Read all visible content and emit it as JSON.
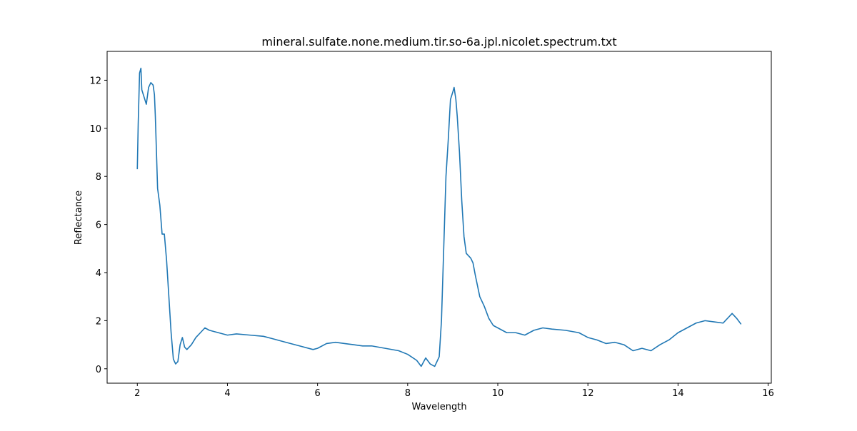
{
  "chart_data": {
    "type": "line",
    "title": "mineral.sulfate.none.medium.tir.so-6a.jpl.nicolet.spectrum.txt",
    "x_label": "Wavelength",
    "y_label": "Reflectance",
    "x": [
      2.0,
      2.02,
      2.05,
      2.08,
      2.1,
      2.15,
      2.2,
      2.25,
      2.3,
      2.35,
      2.38,
      2.4,
      2.45,
      2.5,
      2.55,
      2.6,
      2.65,
      2.7,
      2.75,
      2.8,
      2.85,
      2.9,
      2.95,
      3.0,
      3.05,
      3.1,
      3.2,
      3.3,
      3.4,
      3.5,
      3.6,
      3.8,
      4.0,
      4.2,
      4.5,
      4.8,
      5.0,
      5.3,
      5.6,
      5.9,
      6.0,
      6.2,
      6.4,
      6.6,
      6.8,
      7.0,
      7.2,
      7.5,
      7.8,
      8.0,
      8.2,
      8.3,
      8.4,
      8.5,
      8.6,
      8.7,
      8.75,
      8.8,
      8.85,
      8.9,
      8.95,
      9.0,
      9.03,
      9.07,
      9.1,
      9.15,
      9.2,
      9.25,
      9.3,
      9.4,
      9.45,
      9.5,
      9.6,
      9.7,
      9.8,
      9.9,
      10.0,
      10.2,
      10.4,
      10.6,
      10.8,
      11.0,
      11.2,
      11.5,
      11.8,
      12.0,
      12.2,
      12.4,
      12.6,
      12.8,
      13.0,
      13.2,
      13.4,
      13.6,
      13.8,
      14.0,
      14.2,
      14.4,
      14.6,
      14.8,
      15.0,
      15.2,
      15.3,
      15.4
    ],
    "series": [
      {
        "color": "#1f77b4",
        "values": [
          8.3,
          10.2,
          12.3,
          12.5,
          11.6,
          11.3,
          11.0,
          11.7,
          11.9,
          11.8,
          11.4,
          10.5,
          7.5,
          6.8,
          5.6,
          5.6,
          4.5,
          3.0,
          1.5,
          0.4,
          0.2,
          0.3,
          1.0,
          1.3,
          0.9,
          0.8,
          1.0,
          1.3,
          1.5,
          1.7,
          1.6,
          1.5,
          1.4,
          1.45,
          1.4,
          1.35,
          1.25,
          1.1,
          0.95,
          0.8,
          0.85,
          1.05,
          1.1,
          1.05,
          1.0,
          0.95,
          0.95,
          0.85,
          0.75,
          0.6,
          0.35,
          0.1,
          0.45,
          0.2,
          0.1,
          0.5,
          2.0,
          5.0,
          8.0,
          9.5,
          11.2,
          11.5,
          11.7,
          11.2,
          10.5,
          9.0,
          7.0,
          5.5,
          4.8,
          4.6,
          4.4,
          3.9,
          3.0,
          2.6,
          2.1,
          1.8,
          1.7,
          1.5,
          1.5,
          1.4,
          1.6,
          1.7,
          1.65,
          1.6,
          1.5,
          1.3,
          1.2,
          1.05,
          1.1,
          1.0,
          0.75,
          0.85,
          0.75,
          1.0,
          1.2,
          1.5,
          1.7,
          1.9,
          2.0,
          1.95,
          1.9,
          2.3,
          2.1,
          1.85
        ]
      }
    ],
    "xlim": [
      1.33,
      16.07
    ],
    "xticks": [
      2,
      4,
      6,
      8,
      10,
      12,
      14,
      16
    ],
    "ylim": [
      -0.6,
      13.2
    ],
    "yticks": [
      0,
      2,
      4,
      6,
      8,
      10,
      12
    ]
  }
}
